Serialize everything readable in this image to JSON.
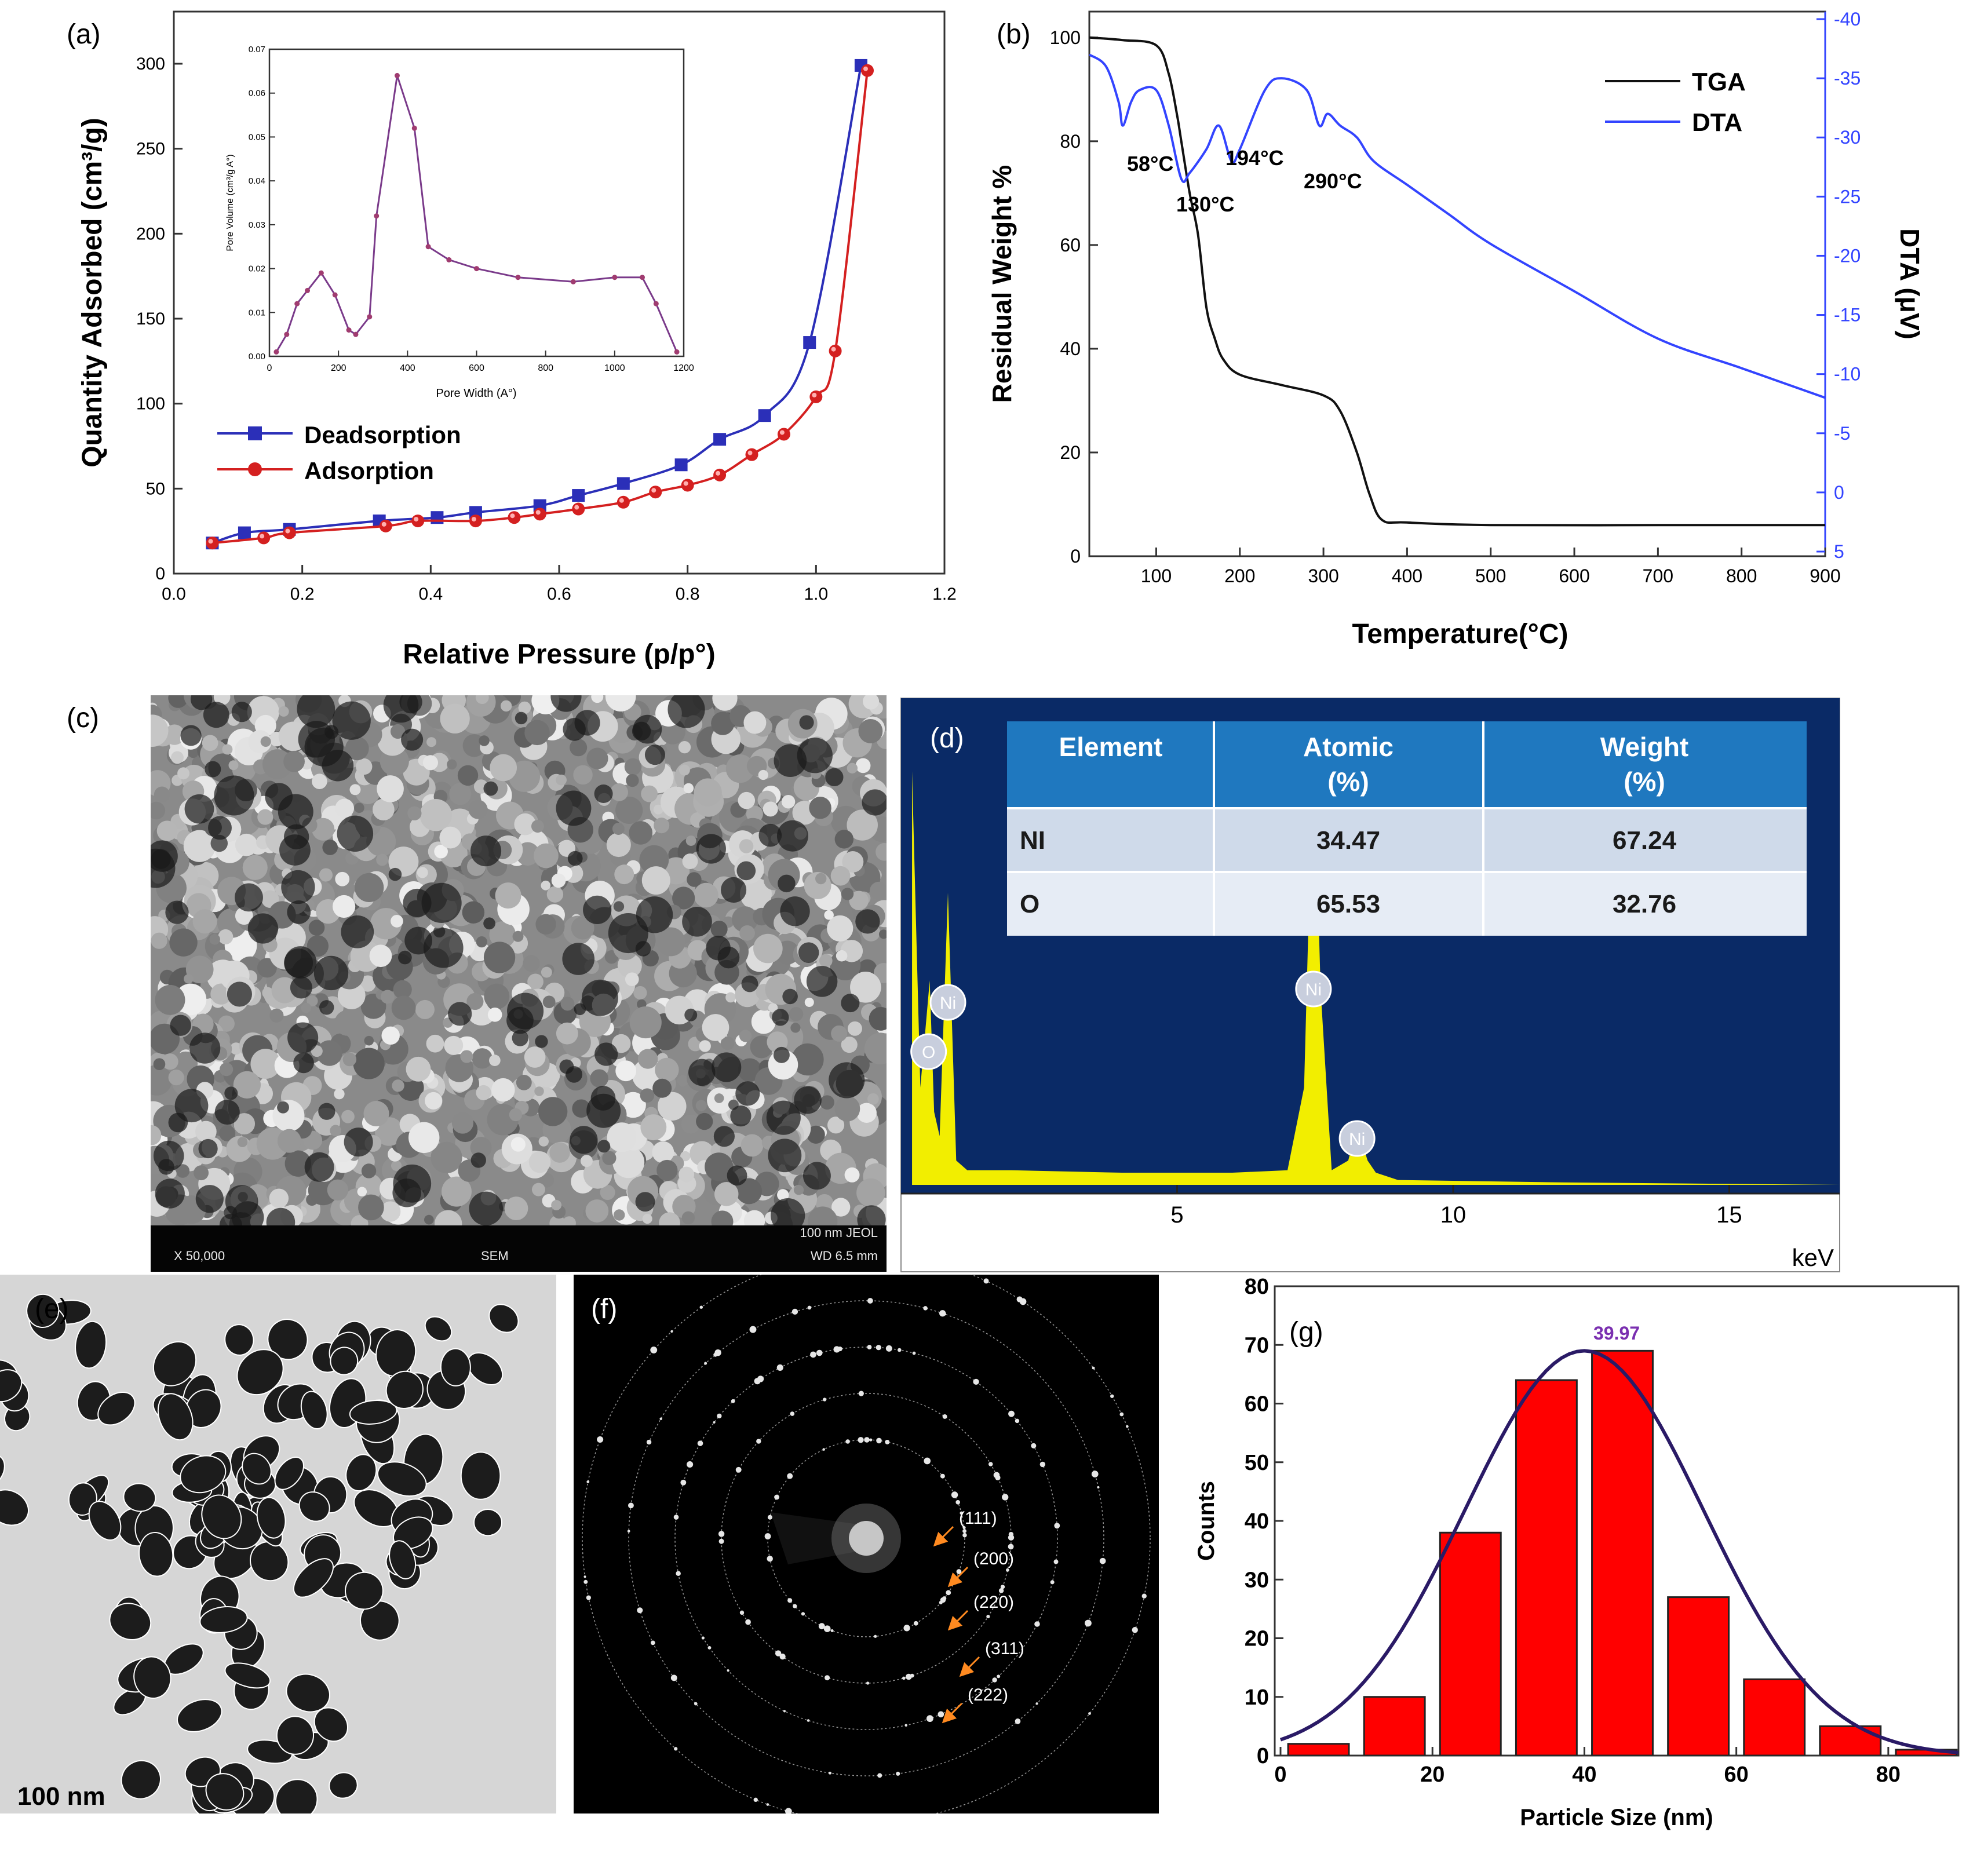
{
  "panel_labels": {
    "a": "(a)",
    "b": "(b)",
    "c": "(c)",
    "d": "(d)",
    "e": "(e)",
    "f": "(f)",
    "g": "(g)"
  },
  "colors": {
    "deads": "#2b2fb8",
    "ads": "#d42020",
    "tga": "#111111",
    "dta": "#3344ff",
    "eds_bg": "#0a2a66",
    "eds_peak": "#f2ee00",
    "table_header": "#1f78bf",
    "bar": "#ff0000",
    "fit": "#2a1a66",
    "mean_label": "#7a2fb0"
  },
  "chart_data": [
    {
      "id": "a",
      "type": "line",
      "xlabel": "Relative Pressure (p/p°)",
      "ylabel": "Quantity Adsorbed (cm³/g)",
      "xlim": [
        0.0,
        1.2
      ],
      "ylim": [
        0,
        300
      ],
      "xticks": [
        "0.0",
        "0.2",
        "0.4",
        "0.6",
        "0.8",
        "1.0",
        "1.2"
      ],
      "yticks": [
        "0",
        "50",
        "100",
        "150",
        "200",
        "250",
        "300"
      ],
      "legend": [
        "Deadsorption",
        "Adsorption"
      ],
      "series": [
        {
          "name": "Deadsorption",
          "marker": "square",
          "x": [
            0.06,
            0.11,
            0.18,
            0.32,
            0.41,
            0.47,
            0.57,
            0.63,
            0.7,
            0.79,
            0.85,
            0.92,
            0.99,
            1.07
          ],
          "y": [
            18,
            24,
            26,
            31,
            33,
            36,
            40,
            46,
            53,
            64,
            79,
            93,
            136,
            299
          ]
        },
        {
          "name": "Adsorption",
          "marker": "circle",
          "x": [
            0.06,
            0.14,
            0.18,
            0.33,
            0.38,
            0.47,
            0.53,
            0.57,
            0.63,
            0.7,
            0.75,
            0.8,
            0.85,
            0.9,
            0.95,
            1.0,
            1.03,
            1.08
          ],
          "y": [
            18,
            21,
            24,
            28,
            31,
            31,
            33,
            35,
            38,
            42,
            48,
            52,
            58,
            70,
            82,
            104,
            131,
            296
          ]
        }
      ],
      "inset": {
        "type": "line",
        "xlabel": "Pore Width (A°)",
        "ylabel": "Pore Volume (cm³/g A°)",
        "xlim": [
          0,
          1200
        ],
        "ylim": [
          0,
          0.07
        ],
        "xticks": [
          "0",
          "200",
          "400",
          "600",
          "800",
          "1000",
          "1200"
        ],
        "yticks": [
          "0.00",
          "0.01",
          "0.02",
          "0.03",
          "0.04",
          "0.05",
          "0.06",
          "0.07"
        ],
        "x": [
          20,
          50,
          80,
          110,
          150,
          190,
          230,
          250,
          290,
          310,
          370,
          420,
          460,
          520,
          600,
          720,
          880,
          1000,
          1080,
          1120,
          1180
        ],
        "y": [
          0.001,
          0.005,
          0.012,
          0.015,
          0.019,
          0.014,
          0.006,
          0.005,
          0.009,
          0.032,
          0.064,
          0.052,
          0.025,
          0.022,
          0.02,
          0.018,
          0.017,
          0.018,
          0.018,
          0.012,
          0.001
        ]
      }
    },
    {
      "id": "b",
      "type": "line",
      "xlabel": "Temperature(°C)",
      "ylabel": "Residual Weight %",
      "ylabel_right": "DTA (μV)",
      "xlim": [
        20,
        900
      ],
      "ylim": [
        0,
        100
      ],
      "ylim_right": [
        5,
        -40
      ],
      "xticks": [
        "100",
        "200",
        "300",
        "400",
        "500",
        "600",
        "700",
        "800",
        "900"
      ],
      "yticks": [
        "0",
        "20",
        "40",
        "60",
        "80",
        "100"
      ],
      "yticks_right": [
        "5",
        "0",
        "-5",
        "-10",
        "-15",
        "-20",
        "-25",
        "-30",
        "-35",
        "-40"
      ],
      "legend": [
        "TGA",
        "DTA"
      ],
      "annotations": [
        "58°C",
        "130°C",
        "194°C",
        "290°C"
      ],
      "series": [
        {
          "name": "TGA",
          "axis": "left",
          "x": [
            20,
            60,
            100,
            115,
            125,
            130,
            140,
            150,
            160,
            170,
            180,
            200,
            250,
            300,
            320,
            340,
            355,
            370,
            400,
            500,
            700,
            900
          ],
          "y": [
            100,
            99.5,
            98.5,
            93,
            85,
            80,
            70,
            62,
            48,
            42,
            38,
            35,
            33,
            31,
            28,
            20,
            12,
            7,
            6.5,
            6,
            6,
            6
          ]
        },
        {
          "name": "DTA",
          "axis": "right",
          "x": [
            20,
            40,
            55,
            60,
            70,
            80,
            100,
            115,
            130,
            140,
            160,
            175,
            190,
            200,
            230,
            250,
            280,
            295,
            305,
            320,
            340,
            360,
            400,
            450,
            500,
            600,
            700,
            800,
            900
          ],
          "y": [
            -37,
            -36,
            -33,
            -31,
            -33,
            -34,
            -34,
            -31,
            -26.5,
            -27,
            -29,
            -31,
            -28,
            -29,
            -34,
            -35,
            -34,
            -31,
            -32,
            -31,
            -30,
            -28,
            -26,
            -23.5,
            -21,
            -17,
            -13,
            -10.5,
            -8
          ]
        }
      ]
    },
    {
      "id": "d",
      "type": "line",
      "xlabel": "keV",
      "xlim": [
        0,
        17
      ],
      "xticks": [
        "5",
        "10",
        "15"
      ],
      "peak_labels": [
        {
          "label": "O",
          "x": 0.5
        },
        {
          "label": "Ni",
          "x": 0.85
        },
        {
          "label": "Ni",
          "x": 7.47
        },
        {
          "label": "Ni",
          "x": 8.26
        }
      ],
      "x": [
        0.2,
        0.35,
        0.52,
        0.6,
        0.7,
        0.85,
        1.0,
        1.2,
        2,
        4,
        6,
        7.0,
        7.3,
        7.47,
        7.6,
        7.8,
        8.1,
        8.26,
        8.45,
        8.6,
        9,
        12,
        17
      ],
      "y": [
        0.85,
        0.2,
        0.42,
        0.15,
        0.1,
        0.6,
        0.05,
        0.03,
        0.03,
        0.025,
        0.025,
        0.03,
        0.2,
        0.92,
        0.4,
        0.03,
        0.05,
        0.12,
        0.05,
        0.025,
        0.01,
        0.005,
        0
      ]
    },
    {
      "id": "g",
      "type": "bar",
      "xlabel": "Particle Size (nm)",
      "ylabel": "Counts",
      "xlim": [
        0,
        90
      ],
      "ylim": [
        0,
        80
      ],
      "xticks": [
        "0",
        "20",
        "40",
        "60",
        "80"
      ],
      "yticks": [
        "0",
        "10",
        "20",
        "30",
        "40",
        "50",
        "60",
        "70",
        "80"
      ],
      "bin_width": 9,
      "categories": [
        5,
        15,
        25,
        35,
        45,
        55,
        65,
        75,
        85
      ],
      "values": [
        2,
        10,
        38,
        64,
        69,
        27,
        13,
        5,
        1
      ],
      "fit_peak_label": "39.97",
      "fit": {
        "mean": 39.97,
        "sd": 15.7,
        "amplitude": 69
      }
    }
  ],
  "eds_table": {
    "headers": [
      "Element",
      "Atomic\n(%)",
      "Weight\n(%)"
    ],
    "header_lines": [
      [
        "Element"
      ],
      [
        "Atomic",
        "(%)"
      ],
      [
        "Weight",
        "(%)"
      ]
    ],
    "rows": [
      [
        "NI",
        "34.47",
        "67.24"
      ],
      [
        "O",
        "65.53",
        "32.76"
      ]
    ]
  },
  "sem": {
    "magnification": "X 50,000",
    "mode": "SEM",
    "scale": "100 nm JEOL",
    "wd": "WD 6.5 mm"
  },
  "tem": {
    "scale": "100 nm"
  },
  "saed": {
    "rings": [
      "(111)",
      "(200)",
      "(220)",
      "(311)",
      "(222)"
    ]
  }
}
